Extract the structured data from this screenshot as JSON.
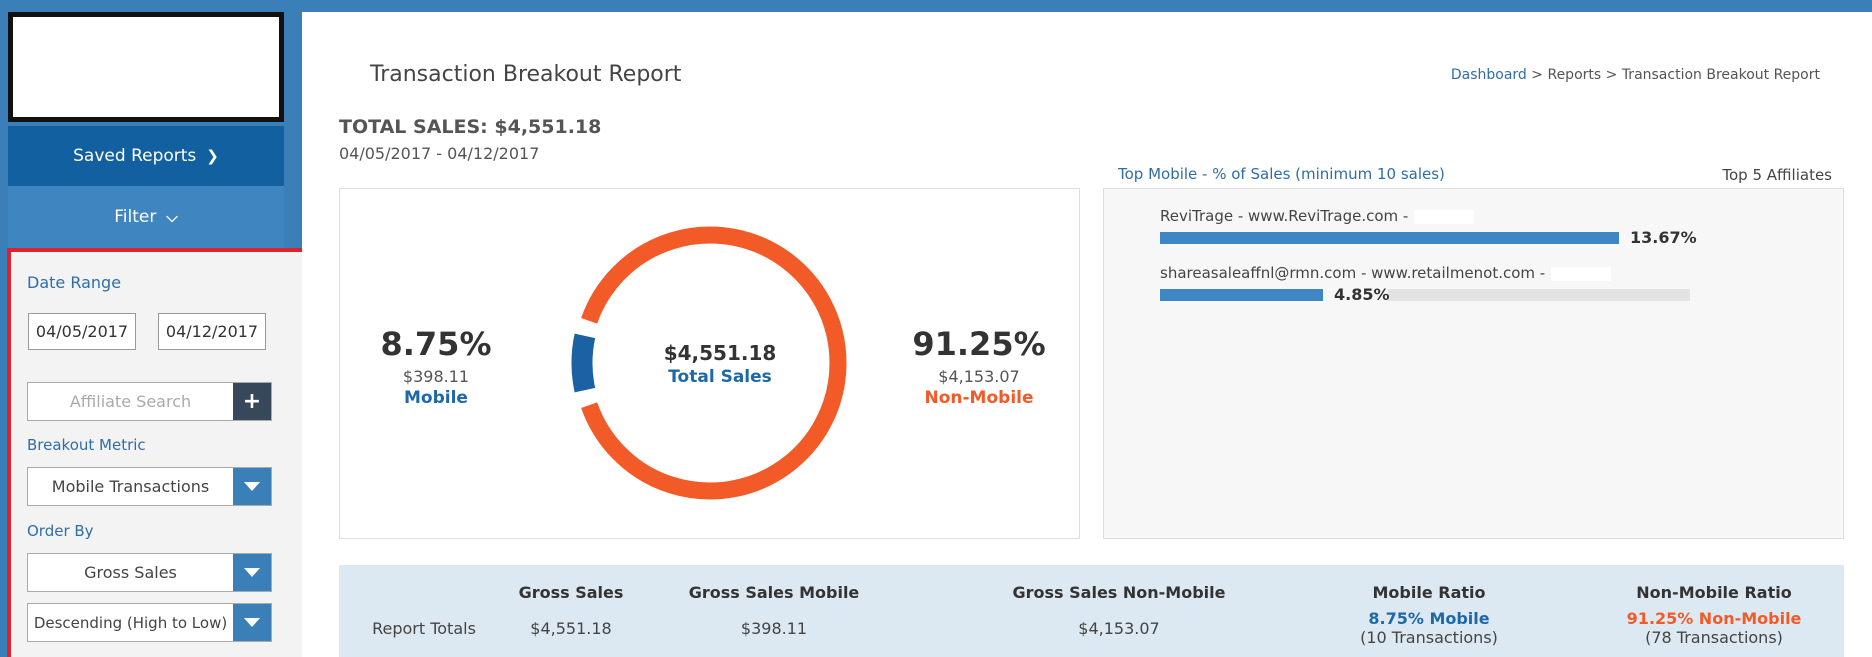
{
  "sidebar": {
    "saved_reports_label": "Saved Reports",
    "filter_label": "Filter",
    "date_range_label": "Date Range",
    "start_date": "04/05/2017",
    "end_date": "04/12/2017",
    "affiliate_search_placeholder": "Affiliate Search",
    "add_icon_glyph": "+",
    "breakout_metric_label": "Breakout Metric",
    "breakout_metric_value": "Mobile Transactions",
    "order_by_label": "Order By",
    "order_by_value": "Gross Sales",
    "order_direction_value": "Descending (High to Low)"
  },
  "header": {
    "title": "Transaction Breakout Report",
    "breadcrumb": {
      "dashboard": "Dashboard",
      "sep1": " > ",
      "reports": "Reports",
      "sep2": " > ",
      "current": "Transaction Breakout Report"
    }
  },
  "summary": {
    "total_sales": "TOTAL SALES: $4,551.18",
    "date_range": "04/05/2017 - 04/12/2017"
  },
  "donut": {
    "mobile_pct": "8.75%",
    "mobile_amount": "$398.11",
    "mobile_label": "Mobile",
    "nonmobile_pct": "91.25%",
    "nonmobile_amount": "$4,153.07",
    "nonmobile_label": "Non-Mobile",
    "total_amount": "$4,551.18",
    "total_label": "Total Sales",
    "mobile_color": "#1a62a3",
    "nonmobile_color": "#f25a28"
  },
  "chart_data": {
    "type": "pie",
    "categories": [
      "Mobile",
      "Non-Mobile"
    ],
    "values": [
      8.75,
      91.25
    ],
    "amounts": [
      398.11,
      4153.07
    ],
    "title": "",
    "center_text": "$4,551.18 Total Sales"
  },
  "affiliates": {
    "title": "Top Mobile - % of Sales (minimum 10 sales)",
    "subtitle": "Top 5 Affiliates",
    "items": [
      {
        "name": "ReviTrage - www.ReviTrage.com -",
        "pct_label": "13.67%",
        "fill": 1.0,
        "show_track": false
      },
      {
        "name": "shareasaleaffnl@rmn.com - www.retailmenot.com -",
        "pct_label": "4.85%",
        "fill": 0.355,
        "show_track": true
      }
    ]
  },
  "totals": {
    "headers": [
      "Gross Sales",
      "Gross Sales Mobile",
      "Gross Sales Non-Mobile",
      "Mobile Ratio",
      "Non-Mobile Ratio"
    ],
    "row_label": "Report Totals",
    "gross_sales": "$4,551.18",
    "gross_sales_mobile": "$398.11",
    "gross_sales_nonmobile": "$4,153.07",
    "mobile_ratio": "8.75% Mobile",
    "mobile_ratio_sub": "(10 Transactions)",
    "nonmobile_ratio": "91.25% Non-Mobile",
    "nonmobile_ratio_sub": "(78 Transactions)"
  }
}
